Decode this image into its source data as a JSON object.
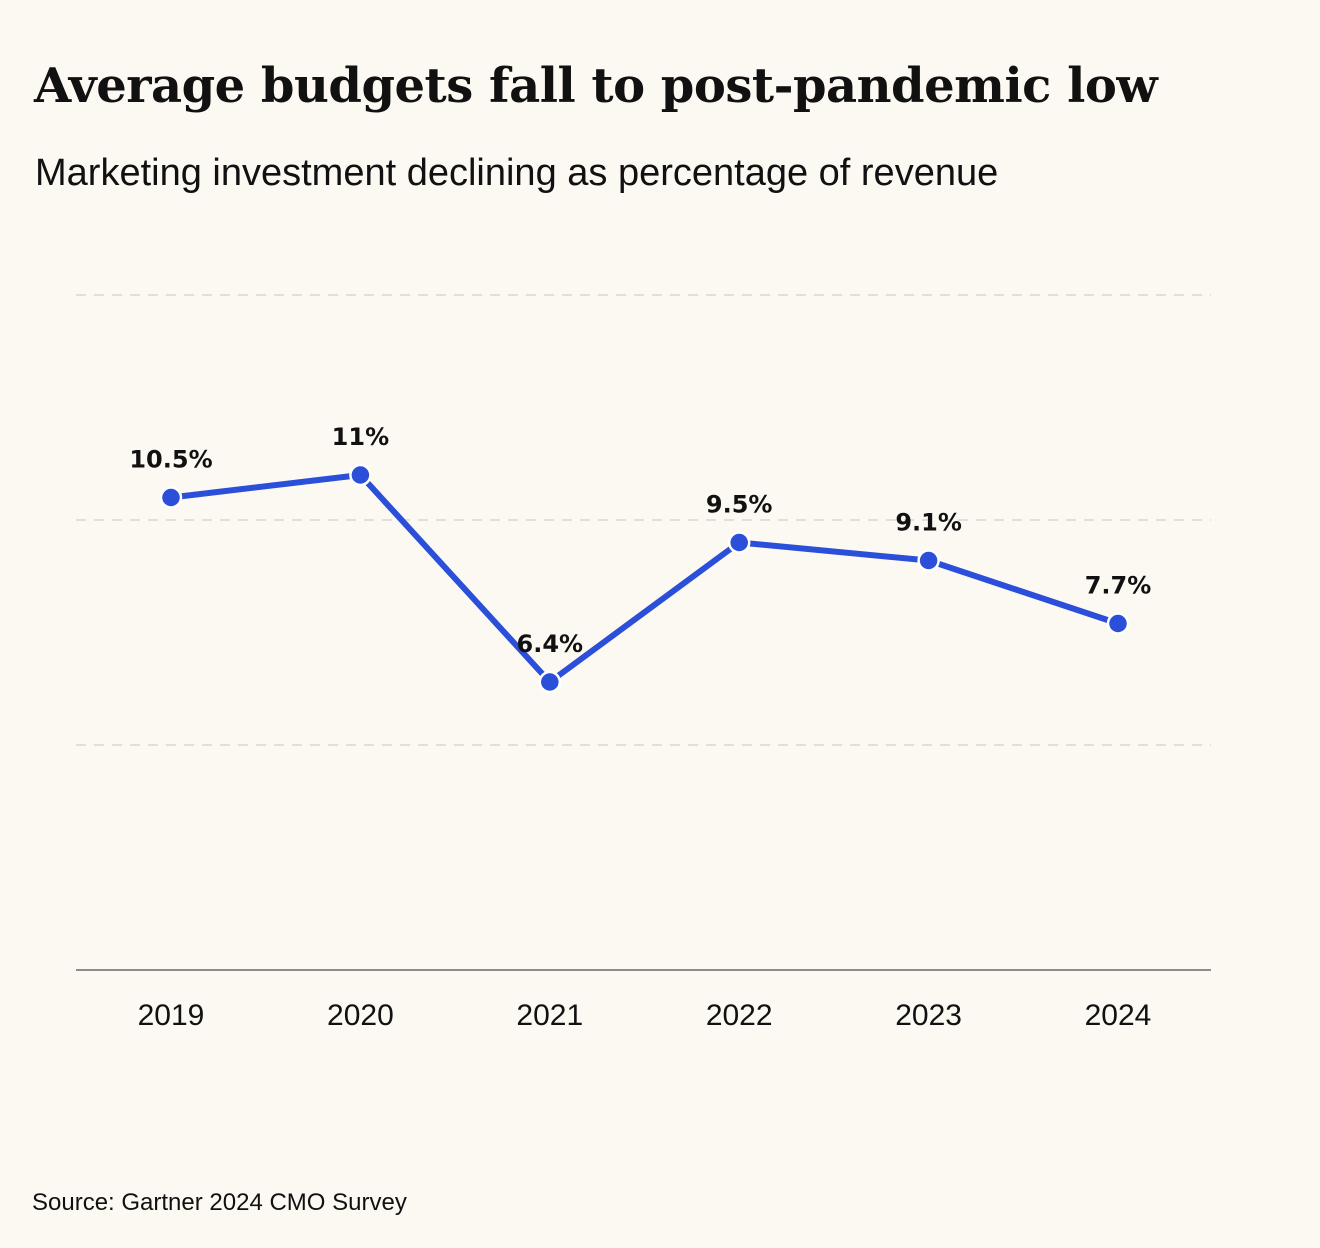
{
  "header": {
    "title": "Average budgets fall to post-pandemic low",
    "subtitle": "Marketing investment declining as percentage of revenue"
  },
  "footer": {
    "source": "Source: Gartner 2024 CMO Survey"
  },
  "colors": {
    "background": "#fcf9f3",
    "line": "#2b4fd8",
    "grid": "#d9d6d0",
    "axis": "#8c8c8c",
    "text": "#111111"
  },
  "chart_data": {
    "type": "line",
    "title": "Average budgets fall to post-pandemic low",
    "subtitle": "Marketing investment declining as percentage of revenue",
    "xlabel": "",
    "ylabel": "",
    "categories": [
      "2019",
      "2020",
      "2021",
      "2022",
      "2023",
      "2024"
    ],
    "series": [
      {
        "values": [
          10.5,
          11,
          6.4,
          9.5,
          9.1,
          7.7
        ],
        "labels": [
          "10.5%",
          "11%",
          "6.4%",
          "9.5%",
          "9.1%",
          "7.7%"
        ]
      }
    ],
    "ylim": [
      0,
      15
    ],
    "gridlines": [
      5,
      10,
      15
    ],
    "grid": true,
    "grid_style": "dashed",
    "legend": "none",
    "y_tick_labels_shown": false
  }
}
